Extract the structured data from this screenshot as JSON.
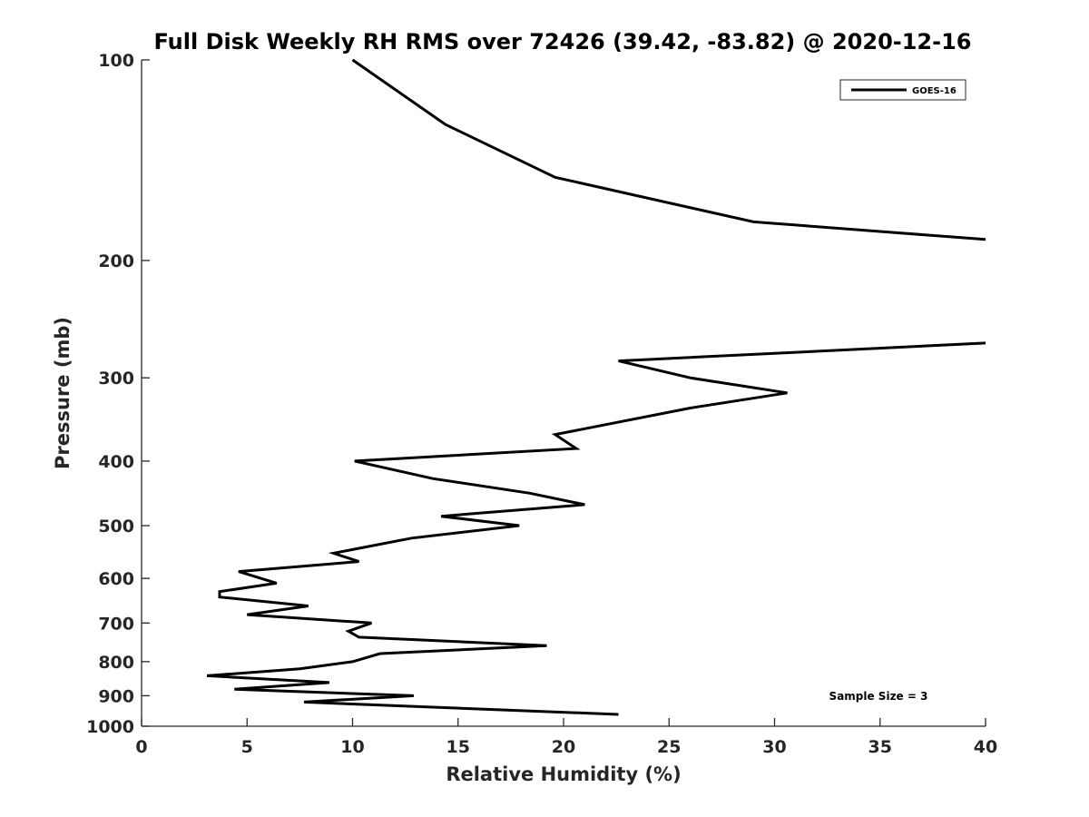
{
  "chart_data": {
    "type": "line",
    "title": "Full Disk Weekly RH RMS over 72426 (39.42, -83.82) @ 2020-12-16",
    "xlabel": "Relative Humidity (%)",
    "ylabel": "Pressure (mb)",
    "xlim": [
      0,
      40
    ],
    "ylim": [
      100,
      1000
    ],
    "yscale": "log",
    "yreversed": true,
    "grid": false,
    "xticks": [
      0,
      5,
      10,
      15,
      20,
      25,
      30,
      35,
      40
    ],
    "xtick_labels": [
      "0",
      "5",
      "10",
      "15",
      "20",
      "25",
      "30",
      "35",
      "40"
    ],
    "yticks": [
      100,
      200,
      300,
      400,
      500,
      600,
      700,
      800,
      900,
      1000
    ],
    "ytick_labels": [
      "100",
      "200",
      "300",
      "400",
      "500",
      "600",
      "700",
      "800",
      "900",
      "1000"
    ],
    "legend": {
      "position": "top-right",
      "entries": [
        "GOES-16"
      ]
    },
    "annotation": "Sample Size = 3",
    "series": [
      {
        "name": "GOES-16",
        "color": "#000000",
        "segments": [
          [
            {
              "x": 10.0,
              "p": 100
            },
            {
              "x": 14.4,
              "p": 125
            },
            {
              "x": 19.6,
              "p": 150
            },
            {
              "x": 29.0,
              "p": 175
            },
            {
              "x": 40.0,
              "p": 186
            }
          ],
          [
            {
              "x": 40.0,
              "p": 266
            },
            {
              "x": 22.6,
              "p": 283
            },
            {
              "x": 26.0,
              "p": 300
            },
            {
              "x": 30.6,
              "p": 316
            },
            {
              "x": 26.0,
              "p": 333
            },
            {
              "x": 19.6,
              "p": 365
            },
            {
              "x": 20.6,
              "p": 383
            },
            {
              "x": 10.1,
              "p": 400
            },
            {
              "x": 13.8,
              "p": 425
            },
            {
              "x": 18.4,
              "p": 447
            },
            {
              "x": 21.0,
              "p": 465
            },
            {
              "x": 14.2,
              "p": 484
            },
            {
              "x": 17.9,
              "p": 500
            },
            {
              "x": 12.8,
              "p": 522
            },
            {
              "x": 9.1,
              "p": 550
            },
            {
              "x": 10.3,
              "p": 566
            },
            {
              "x": 4.6,
              "p": 586
            },
            {
              "x": 6.4,
              "p": 610
            },
            {
              "x": 3.7,
              "p": 628
            },
            {
              "x": 3.7,
              "p": 640
            },
            {
              "x": 7.9,
              "p": 660
            },
            {
              "x": 5.0,
              "p": 680
            },
            {
              "x": 10.9,
              "p": 700
            },
            {
              "x": 9.8,
              "p": 720
            },
            {
              "x": 10.3,
              "p": 735
            },
            {
              "x": 19.2,
              "p": 757
            },
            {
              "x": 11.3,
              "p": 778
            },
            {
              "x": 10.0,
              "p": 800
            },
            {
              "x": 7.5,
              "p": 820
            },
            {
              "x": 3.1,
              "p": 840
            },
            {
              "x": 8.9,
              "p": 860
            },
            {
              "x": 4.4,
              "p": 880
            },
            {
              "x": 12.9,
              "p": 900
            },
            {
              "x": 7.7,
              "p": 920
            },
            {
              "x": 22.6,
              "p": 960
            }
          ]
        ]
      }
    ]
  }
}
